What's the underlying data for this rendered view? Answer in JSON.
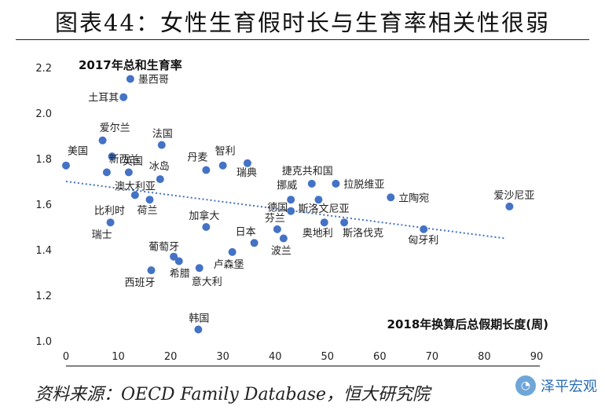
{
  "title": "图表44：女性生育假时长与生育率相关性很弱",
  "source": "资料来源：OECD Family Database，恒大研究院",
  "watermark": {
    "text": "泽平宏观"
  },
  "colors": {
    "point": "#4472C4",
    "trend": "#4472C4",
    "axis": "#000000"
  },
  "chart_data": {
    "type": "scatter",
    "title": "",
    "ylabel": "2017年总和生育率",
    "xlabel": "2018年换算后总假期长度(周)",
    "xlim": [
      0,
      90
    ],
    "ylim": [
      1.0,
      2.2
    ],
    "xticks": [
      "0",
      "10",
      "20",
      "30",
      "40",
      "50",
      "60",
      "70",
      "80",
      "90"
    ],
    "yticks": [
      "1.0",
      "1.2",
      "1.4",
      "1.6",
      "1.8",
      "2.0",
      "2.2"
    ],
    "trendline": {
      "x": [
        0,
        84
      ],
      "y": [
        1.7,
        1.45
      ],
      "style": "dotted"
    },
    "points": [
      {
        "name": "墨西哥",
        "x": 12.3,
        "y": 2.15
      },
      {
        "name": "土耳其",
        "x": 11.0,
        "y": 2.07
      },
      {
        "name": "爱尔兰",
        "x": 7.0,
        "y": 1.88
      },
      {
        "name": "法国",
        "x": 18.3,
        "y": 1.86
      },
      {
        "name": "新西兰",
        "x": 8.8,
        "y": 1.81
      },
      {
        "name": "美国",
        "x": 0.0,
        "y": 1.77
      },
      {
        "name": "英国",
        "x": 12.0,
        "y": 1.74
      },
      {
        "name": "澳大利亚",
        "x": 7.8,
        "y": 1.74
      },
      {
        "name": "冰岛",
        "x": 18.0,
        "y": 1.71
      },
      {
        "name": "丹麦",
        "x": 26.8,
        "y": 1.75
      },
      {
        "name": "智利",
        "x": 30.0,
        "y": 1.77
      },
      {
        "name": "瑞典",
        "x": 34.7,
        "y": 1.78
      },
      {
        "name": "比利时",
        "x": 13.2,
        "y": 1.64
      },
      {
        "name": "荷兰",
        "x": 16.0,
        "y": 1.62
      },
      {
        "name": "瑞士",
        "x": 8.5,
        "y": 1.52
      },
      {
        "name": "加拿大",
        "x": 26.8,
        "y": 1.5
      },
      {
        "name": "捷克共和国",
        "x": 47.0,
        "y": 1.69
      },
      {
        "name": "拉脱维亚",
        "x": 51.6,
        "y": 1.69
      },
      {
        "name": "挪威",
        "x": 43.0,
        "y": 1.62
      },
      {
        "name": "斯洛文尼亚",
        "x": 48.3,
        "y": 1.62
      },
      {
        "name": "立陶宛",
        "x": 62.1,
        "y": 1.63
      },
      {
        "name": "爱沙尼亚",
        "x": 84.8,
        "y": 1.59
      },
      {
        "name": "德国",
        "x": 43.0,
        "y": 1.57
      },
      {
        "name": "芬兰",
        "x": 40.4,
        "y": 1.49
      },
      {
        "name": "奥地利",
        "x": 49.4,
        "y": 1.52
      },
      {
        "name": "斯洛伐克",
        "x": 53.2,
        "y": 1.52
      },
      {
        "name": "匈牙利",
        "x": 68.4,
        "y": 1.49
      },
      {
        "name": "波兰",
        "x": 41.6,
        "y": 1.45
      },
      {
        "name": "日本",
        "x": 36.0,
        "y": 1.43
      },
      {
        "name": "卢森堡",
        "x": 31.8,
        "y": 1.39
      },
      {
        "name": "葡萄牙",
        "x": 20.6,
        "y": 1.37
      },
      {
        "name": "希腊",
        "x": 21.6,
        "y": 1.35
      },
      {
        "name": "意大利",
        "x": 25.5,
        "y": 1.32
      },
      {
        "name": "西班牙",
        "x": 16.3,
        "y": 1.31
      },
      {
        "name": "韩国",
        "x": 25.3,
        "y": 1.05
      }
    ]
  }
}
